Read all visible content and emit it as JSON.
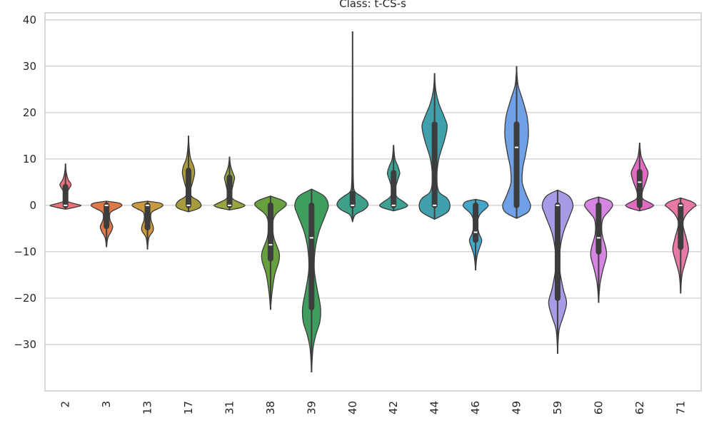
{
  "chart_data": {
    "type": "violin",
    "title": "Class: t-CS-s",
    "xlabel": "",
    "ylabel": "",
    "ylim": [
      -40,
      41.5
    ],
    "yticks": [
      -30,
      -20,
      -10,
      0,
      10,
      20,
      30,
      40
    ],
    "ytick_labels": [
      "−30",
      "−20",
      "−10",
      "0",
      "10",
      "20",
      "30",
      "40"
    ],
    "grid": true,
    "legend": "none",
    "categories": [
      "2",
      "3",
      "13",
      "17",
      "31",
      "38",
      "39",
      "40",
      "42",
      "44",
      "46",
      "49",
      "59",
      "60",
      "62",
      "71"
    ],
    "colors": [
      "#e8737c",
      "#dd7a48",
      "#c79a3f",
      "#a89b3f",
      "#97a43f",
      "#68a040",
      "#3f9e5e",
      "#3fa08a",
      "#3fa094",
      "#3fa1ab",
      "#46a6c8",
      "#70a0e6",
      "#a69be4",
      "#d685e3",
      "#e16bc1",
      "#e878a5"
    ],
    "violins": [
      {
        "category": "2",
        "shape": [
          [
            -0.8,
            0.03
          ],
          [
            -0.4,
            0.35
          ],
          [
            0,
            0.55
          ],
          [
            0.4,
            0.3
          ],
          [
            1,
            0.05
          ],
          [
            2.5,
            0.03
          ],
          [
            3.5,
            0.12
          ],
          [
            4.5,
            0.2
          ],
          [
            5.5,
            0.1
          ],
          [
            7,
            0.03
          ],
          [
            9,
            0.0
          ]
        ],
        "min": -0.8,
        "max": 9,
        "q1": 0,
        "median": 0,
        "q3": 4
      },
      {
        "category": "3",
        "shape": [
          [
            -9,
            0.0
          ],
          [
            -7,
            0.05
          ],
          [
            -5.5,
            0.18
          ],
          [
            -4.5,
            0.22
          ],
          [
            -3,
            0.12
          ],
          [
            -1.5,
            0.15
          ],
          [
            -0.5,
            0.45
          ],
          [
            0,
            0.55
          ],
          [
            0.5,
            0.45
          ],
          [
            0.9,
            0.0
          ]
        ],
        "min": -9,
        "max": 0.9,
        "q1": -4.5,
        "median": 0,
        "q3": 0
      },
      {
        "category": "13",
        "shape": [
          [
            -9.5,
            0.0
          ],
          [
            -7,
            0.05
          ],
          [
            -5.5,
            0.2
          ],
          [
            -4.5,
            0.2
          ],
          [
            -3,
            0.12
          ],
          [
            -1.5,
            0.15
          ],
          [
            -0.5,
            0.45
          ],
          [
            0,
            0.55
          ],
          [
            0.5,
            0.45
          ],
          [
            0.9,
            0.0
          ]
        ],
        "min": -9.5,
        "max": 0.9,
        "q1": -4.8,
        "median": 0,
        "q3": 0
      },
      {
        "category": "17",
        "shape": [
          [
            -1.4,
            0.0
          ],
          [
            -0.7,
            0.35
          ],
          [
            0,
            0.45
          ],
          [
            1,
            0.35
          ],
          [
            2,
            0.1
          ],
          [
            3.5,
            0.08
          ],
          [
            5,
            0.15
          ],
          [
            7,
            0.22
          ],
          [
            8.5,
            0.18
          ],
          [
            10,
            0.08
          ],
          [
            12,
            0.03
          ],
          [
            15,
            0.0
          ]
        ],
        "min": -1.4,
        "max": 15,
        "q1": 0,
        "median": 0,
        "q3": 7.5
      },
      {
        "category": "31",
        "shape": [
          [
            -1,
            0.0
          ],
          [
            -0.5,
            0.4
          ],
          [
            0,
            0.55
          ],
          [
            0.5,
            0.4
          ],
          [
            1.5,
            0.1
          ],
          [
            3,
            0.08
          ],
          [
            5,
            0.15
          ],
          [
            6,
            0.18
          ],
          [
            7,
            0.12
          ],
          [
            8.5,
            0.04
          ],
          [
            10.5,
            0.0
          ]
        ],
        "min": -1,
        "max": 10.5,
        "q1": 0,
        "median": 0,
        "q3": 6
      },
      {
        "category": "38",
        "shape": [
          [
            -22.5,
            0.0
          ],
          [
            -19,
            0.05
          ],
          [
            -15,
            0.15
          ],
          [
            -12,
            0.3
          ],
          [
            -10,
            0.3
          ],
          [
            -7,
            0.12
          ],
          [
            -4,
            0.08
          ],
          [
            -2,
            0.18
          ],
          [
            0,
            0.55
          ],
          [
            1,
            0.45
          ],
          [
            2,
            0.0
          ]
        ],
        "min": -22.5,
        "max": 2,
        "q1": -11.5,
        "median": -8.5,
        "q3": 0
      },
      {
        "category": "39",
        "shape": [
          [
            -36,
            0.0
          ],
          [
            -31,
            0.05
          ],
          [
            -28,
            0.15
          ],
          [
            -25,
            0.3
          ],
          [
            -22,
            0.32
          ],
          [
            -18,
            0.2
          ],
          [
            -14,
            0.1
          ],
          [
            -10,
            0.12
          ],
          [
            -6,
            0.25
          ],
          [
            -2,
            0.5
          ],
          [
            0,
            0.6
          ],
          [
            2,
            0.45
          ],
          [
            3.5,
            0.0
          ]
        ],
        "min": -36,
        "max": 3.5,
        "q1": -22,
        "median": -7,
        "q3": 0
      },
      {
        "category": "40",
        "shape": [
          [
            -3.5,
            0.0
          ],
          [
            -2,
            0.1
          ],
          [
            -1,
            0.4
          ],
          [
            0,
            0.55
          ],
          [
            1,
            0.5
          ],
          [
            2,
            0.3
          ],
          [
            3,
            0.08
          ],
          [
            5,
            0.03
          ],
          [
            10,
            0.02
          ],
          [
            20,
            0.01
          ],
          [
            37.5,
            0.0
          ]
        ],
        "min": -3.5,
        "max": 37.5,
        "q1": 0,
        "median": 0,
        "q3": 2.5
      },
      {
        "category": "42",
        "shape": [
          [
            -1.2,
            0.0
          ],
          [
            -0.6,
            0.35
          ],
          [
            0,
            0.5
          ],
          [
            0.8,
            0.35
          ],
          [
            2,
            0.1
          ],
          [
            4,
            0.08
          ],
          [
            6,
            0.18
          ],
          [
            7,
            0.22
          ],
          [
            8.5,
            0.15
          ],
          [
            10,
            0.05
          ],
          [
            13,
            0.0
          ]
        ],
        "min": -1.2,
        "max": 13,
        "q1": 0,
        "median": 0,
        "q3": 7
      },
      {
        "category": "44",
        "shape": [
          [
            -3,
            0.0
          ],
          [
            -1.5,
            0.45
          ],
          [
            0,
            0.55
          ],
          [
            1.5,
            0.45
          ],
          [
            3,
            0.15
          ],
          [
            6,
            0.08
          ],
          [
            10,
            0.15
          ],
          [
            14,
            0.35
          ],
          [
            17,
            0.45
          ],
          [
            19,
            0.35
          ],
          [
            22,
            0.15
          ],
          [
            25,
            0.04
          ],
          [
            28.5,
            0.0
          ]
        ],
        "min": -3,
        "max": 28.5,
        "q1": 0,
        "median": 0,
        "q3": 17.5
      },
      {
        "category": "46",
        "shape": [
          [
            -14,
            0.0
          ],
          [
            -11,
            0.05
          ],
          [
            -9,
            0.15
          ],
          [
            -7.5,
            0.22
          ],
          [
            -6,
            0.12
          ],
          [
            -4,
            0.06
          ],
          [
            -2,
            0.15
          ],
          [
            -0.5,
            0.4
          ],
          [
            0,
            0.45
          ],
          [
            0.8,
            0.35
          ],
          [
            1.3,
            0.0
          ]
        ],
        "min": -14,
        "max": 1.3,
        "q1": -7.5,
        "median": -5.8,
        "q3": 0
      },
      {
        "category": "49",
        "shape": [
          [
            -2.8,
            0.0
          ],
          [
            -1.5,
            0.4
          ],
          [
            0,
            0.5
          ],
          [
            1.5,
            0.4
          ],
          [
            3,
            0.3
          ],
          [
            5,
            0.2
          ],
          [
            8,
            0.22
          ],
          [
            11,
            0.32
          ],
          [
            15,
            0.42
          ],
          [
            19,
            0.38
          ],
          [
            23,
            0.2
          ],
          [
            26,
            0.05
          ],
          [
            30,
            0.0
          ]
        ],
        "min": -2.8,
        "max": 30,
        "q1": 0,
        "median": 12.5,
        "q3": 17.5
      },
      {
        "category": "59",
        "shape": [
          [
            -32,
            0.0
          ],
          [
            -27,
            0.05
          ],
          [
            -24,
            0.2
          ],
          [
            -21,
            0.32
          ],
          [
            -18,
            0.2
          ],
          [
            -14,
            0.08
          ],
          [
            -10,
            0.08
          ],
          [
            -6,
            0.2
          ],
          [
            -2,
            0.45
          ],
          [
            0,
            0.55
          ],
          [
            2,
            0.4
          ],
          [
            3.3,
            0.0
          ]
        ],
        "min": -32,
        "max": 3.3,
        "q1": -20,
        "median": 0,
        "q3": 0
      },
      {
        "category": "60",
        "shape": [
          [
            -21,
            0.0
          ],
          [
            -17,
            0.05
          ],
          [
            -14,
            0.15
          ],
          [
            -11,
            0.28
          ],
          [
            -9,
            0.25
          ],
          [
            -6,
            0.12
          ],
          [
            -3,
            0.15
          ],
          [
            -1,
            0.4
          ],
          [
            0,
            0.5
          ],
          [
            1,
            0.4
          ],
          [
            1.8,
            0.0
          ]
        ],
        "min": -21,
        "max": 1.8,
        "q1": -10,
        "median": -7,
        "q3": 0
      },
      {
        "category": "62",
        "shape": [
          [
            -1.2,
            0.0
          ],
          [
            -0.6,
            0.35
          ],
          [
            0,
            0.5
          ],
          [
            0.6,
            0.35
          ],
          [
            1.5,
            0.1
          ],
          [
            3,
            0.1
          ],
          [
            5,
            0.22
          ],
          [
            7,
            0.3
          ],
          [
            8.5,
            0.2
          ],
          [
            10.5,
            0.06
          ],
          [
            13.5,
            0.0
          ]
        ],
        "min": -1.2,
        "max": 13.5,
        "q1": 0,
        "median": 5,
        "q3": 7.2
      },
      {
        "category": "71",
        "shape": [
          [
            -19,
            0.0
          ],
          [
            -15,
            0.05
          ],
          [
            -12,
            0.18
          ],
          [
            -9.5,
            0.28
          ],
          [
            -7,
            0.2
          ],
          [
            -4,
            0.08
          ],
          [
            -2,
            0.2
          ],
          [
            -0.5,
            0.45
          ],
          [
            0,
            0.55
          ],
          [
            0.8,
            0.4
          ],
          [
            1.6,
            0.0
          ]
        ],
        "min": -19,
        "max": 1.6,
        "q1": -9,
        "median": 0,
        "q3": 0
      }
    ]
  }
}
